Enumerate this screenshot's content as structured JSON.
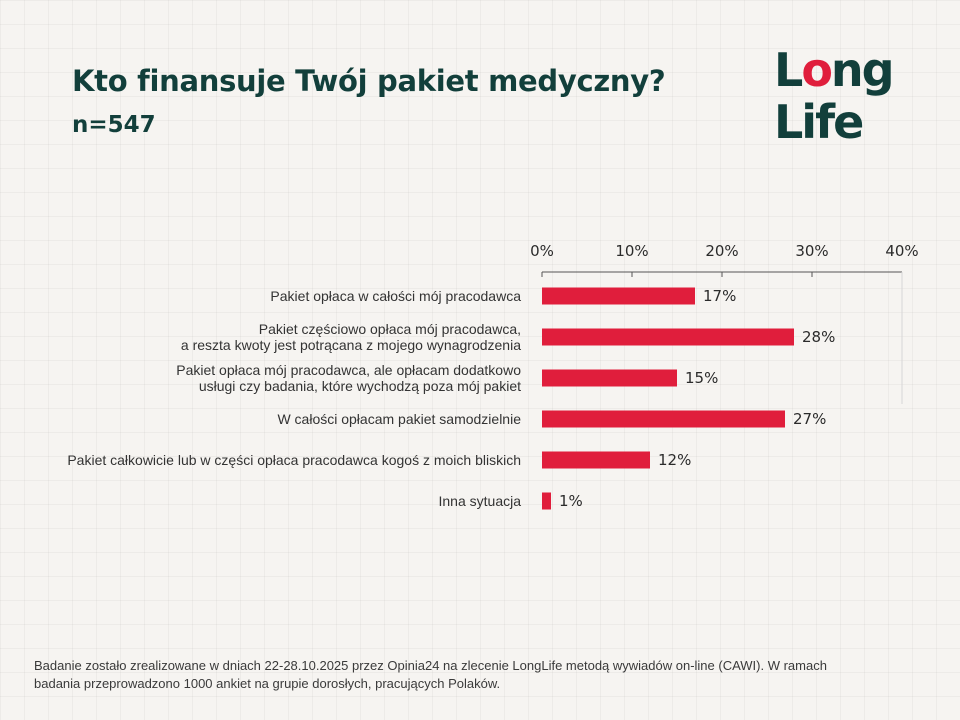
{
  "title": "Kto finansuje Twój pakiet medyczny?",
  "subtitle": "n=547",
  "logo": {
    "line1": "Long",
    "line2": "Life"
  },
  "colors": {
    "bar": "#e01e3c",
    "title": "#123f3b",
    "logo_dark": "#123f3b",
    "logo_red": "#e01e3c"
  },
  "chart_data": {
    "type": "bar",
    "orientation": "horizontal",
    "categories": [
      [
        "Pakiet opłaca w całości mój pracodawca"
      ],
      [
        "Pakiet częściowo opłaca mój pracodawca,",
        "a reszta kwoty jest potrącana z mojego wynagrodzenia"
      ],
      [
        "Pakiet opłaca mój pracodawca, ale opłacam dodatkowo",
        "usługi czy badania, które wychodzą poza mój pakiet"
      ],
      [
        "W całości opłacam pakiet samodzielnie"
      ],
      [
        "Pakiet całkowicie lub w części opłaca pracodawca kogoś z moich bliskich"
      ],
      [
        "Inna sytuacja"
      ]
    ],
    "values": [
      17,
      28,
      15,
      27,
      12,
      1
    ],
    "value_labels": [
      "17%",
      "28%",
      "15%",
      "27%",
      "12%",
      "1%"
    ],
    "xlim": [
      0,
      40
    ],
    "ticks": [
      0,
      10,
      20,
      30,
      40
    ],
    "tick_labels": [
      "0%",
      "10%",
      "20%",
      "30%",
      "40%"
    ],
    "axis_position": "top",
    "grid": false,
    "legend": "none"
  },
  "footer": {
    "line1": "Badanie zostało zrealizowane w dniach 22-28.10.2025 przez Opinia24 na zlecenie LongLife metodą wywiadów on-line (CAWI). W ramach",
    "line2": "badania przeprowadzono 1000 ankiet na grupie dorosłych, pracujących Polaków."
  }
}
